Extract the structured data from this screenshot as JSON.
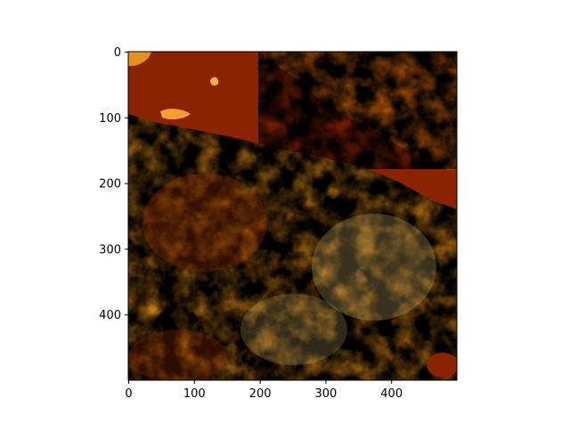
{
  "image": {
    "subject": "false-color terrain raster, afmhot colormap",
    "colormap": "afmhot",
    "colors": {
      "water": "#8b2200",
      "dark_terrain": "#a43a00",
      "mid_terrain": "#d97a10",
      "bright_terrain": "#ffcf55",
      "highlight": "#fff0a8"
    }
  },
  "axes": {
    "x_ticks": [
      "0",
      "100",
      "200",
      "300",
      "400"
    ],
    "y_ticks": [
      "0",
      "100",
      "200",
      "300",
      "400"
    ],
    "x_range": [
      0,
      500
    ],
    "y_range": [
      0,
      500
    ],
    "y_inverted": true,
    "grid": false
  }
}
